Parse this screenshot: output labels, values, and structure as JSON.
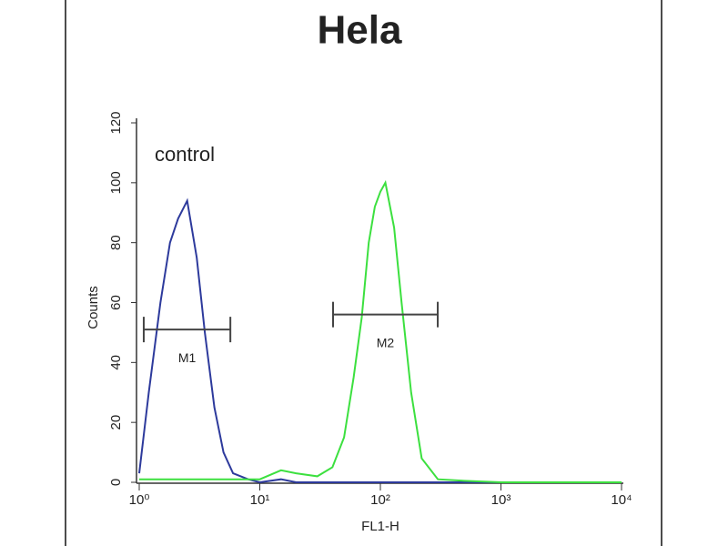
{
  "chart_data": {
    "type": "line",
    "title": "Hela",
    "annotation": "control",
    "x_label": "FL1-H",
    "y_label": "Counts",
    "xscale": "log",
    "xlim": [
      1,
      10000
    ],
    "ylim": [
      0,
      120
    ],
    "xticks": [
      {
        "value": 1,
        "label": "10⁰"
      },
      {
        "value": 10,
        "label": "10¹"
      },
      {
        "value": 100,
        "label": "10²"
      },
      {
        "value": 1000,
        "label": "10³"
      },
      {
        "value": 10000,
        "label": "10⁴"
      }
    ],
    "yticks": [
      0,
      20,
      40,
      60,
      80,
      100,
      120
    ],
    "x": [
      1,
      1.2,
      1.5,
      1.8,
      2.1,
      2.5,
      3,
      3.5,
      4.2,
      5,
      6,
      8,
      10,
      15,
      20,
      30,
      40,
      50,
      60,
      70,
      80,
      90,
      100,
      110,
      130,
      150,
      180,
      220,
      300,
      500,
      1000,
      3000,
      10000
    ],
    "series": [
      {
        "name": "control",
        "color": "#2d3a9c",
        "values": [
          3,
          30,
          60,
          80,
          88,
          94,
          75,
          50,
          25,
          10,
          3,
          1,
          0,
          1,
          0,
          0,
          0,
          0,
          0,
          0,
          0,
          0,
          0,
          0,
          0,
          0,
          0,
          0,
          0,
          0,
          0,
          0,
          0
        ]
      },
      {
        "color": "#3ce03f",
        "values": [
          1,
          1,
          1,
          1,
          1,
          1,
          1,
          1,
          1,
          1,
          1,
          1,
          1,
          4,
          3,
          2,
          5,
          15,
          35,
          55,
          80,
          92,
          97,
          100,
          85,
          60,
          30,
          8,
          1,
          0.5,
          0,
          0,
          0
        ]
      }
    ],
    "markers": [
      {
        "label": "M1",
        "range": [
          1.09,
          5.7
        ],
        "y": 51
      },
      {
        "label": "M2",
        "range": [
          40.5,
          299
        ],
        "y": 56
      }
    ]
  }
}
